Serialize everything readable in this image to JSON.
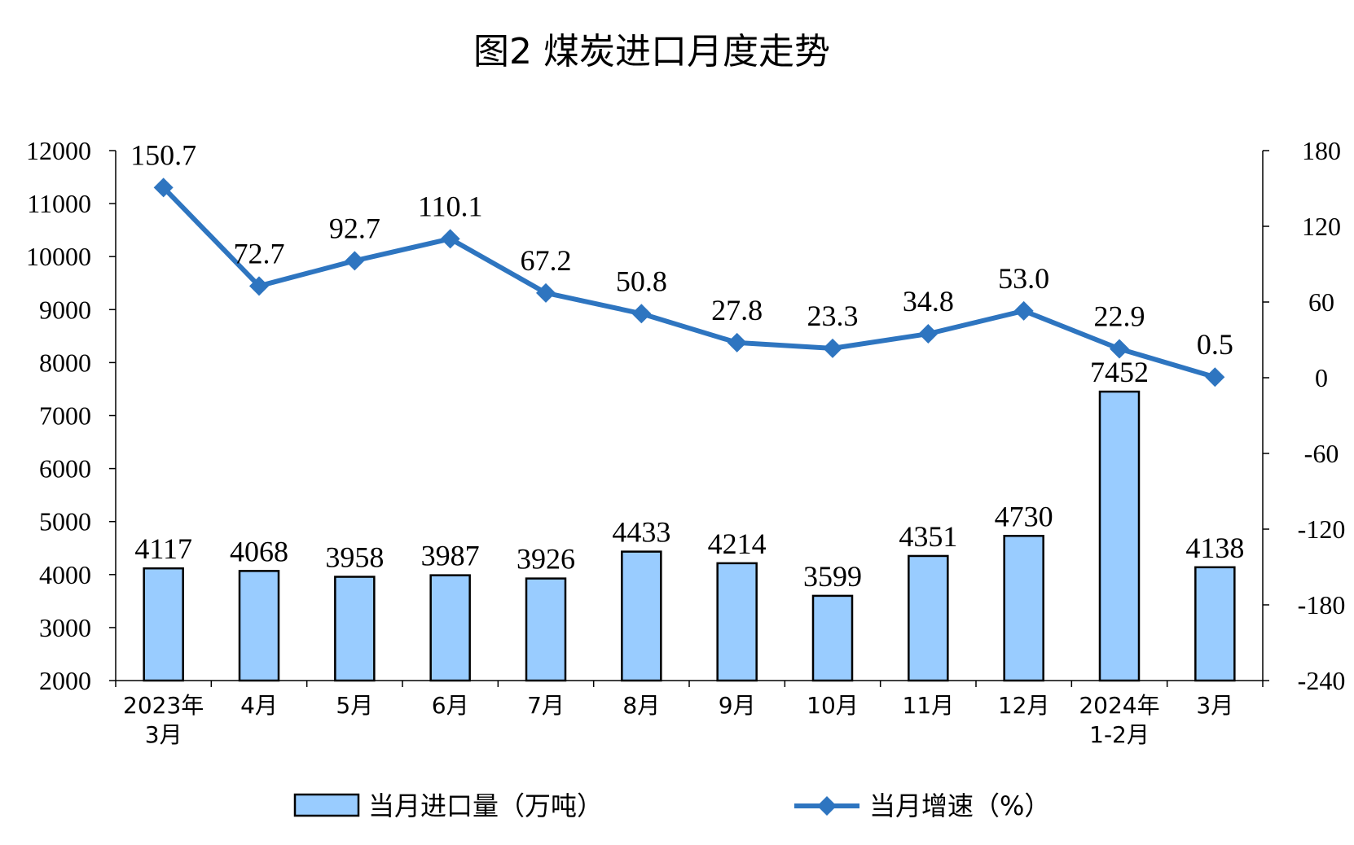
{
  "chart_data": {
    "type": "bar+line",
    "title": "图2 煤炭进口月度走势",
    "categories": [
      [
        "2023年",
        "3月"
      ],
      [
        "4月"
      ],
      [
        "5月"
      ],
      [
        "6月"
      ],
      [
        "7月"
      ],
      [
        "8月"
      ],
      [
        "9月"
      ],
      [
        "10月"
      ],
      [
        "11月"
      ],
      [
        "12月"
      ],
      [
        "2024年",
        "1-2月"
      ],
      [
        "3月"
      ]
    ],
    "series": [
      {
        "name": "当月进口量（万吨）",
        "type": "bar",
        "axis": "left",
        "color": "#99ccff",
        "values": [
          4117,
          4068,
          3958,
          3987,
          3926,
          4433,
          4214,
          3599,
          4351,
          4730,
          7452,
          4138
        ],
        "labels": [
          "4117",
          "4068",
          "3958",
          "3987",
          "3926",
          "4433",
          "4214",
          "3599",
          "4351",
          "4730",
          "7452",
          "4138"
        ]
      },
      {
        "name": "当月增速（%）",
        "type": "line",
        "axis": "right",
        "color": "#2e75c0",
        "marker": "diamond",
        "values": [
          150.7,
          72.7,
          92.7,
          110.1,
          67.2,
          50.8,
          27.8,
          23.3,
          34.8,
          53.0,
          22.9,
          0.5
        ],
        "labels": [
          "150.7",
          "72.7",
          "92.7",
          "110.1",
          "67.2",
          "50.8",
          "27.8",
          "23.3",
          "34.8",
          "53.0",
          "22.9",
          "0.5"
        ]
      }
    ],
    "y_left": {
      "min": 2000,
      "max": 12000,
      "ticks": [
        "2000",
        "3000",
        "4000",
        "5000",
        "6000",
        "7000",
        "8000",
        "9000",
        "10000",
        "11000",
        "12000"
      ]
    },
    "y_right": {
      "min": -240,
      "max": 180,
      "ticks": [
        "-240",
        "-180",
        "-120",
        "-60",
        "0",
        "60",
        "120",
        "180"
      ]
    },
    "grid": false,
    "legend_position": "bottom-center"
  }
}
